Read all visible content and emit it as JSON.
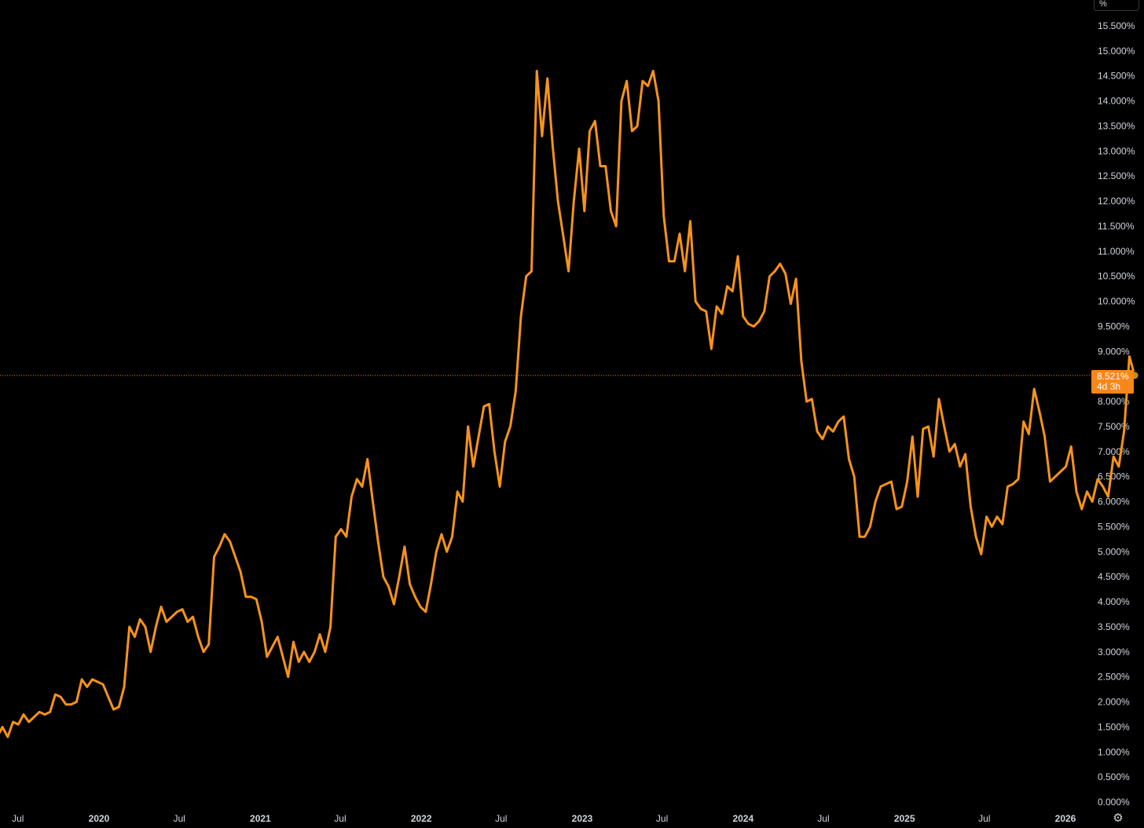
{
  "chart_data": {
    "type": "line",
    "unit": "%",
    "y_range": [
      0,
      15.5
    ],
    "y_tick_values": [
      0,
      0.5,
      1,
      1.5,
      2,
      2.5,
      3,
      3.5,
      4,
      4.5,
      5,
      5.5,
      6,
      6.5,
      7,
      7.5,
      8,
      8.5,
      9,
      9.5,
      10,
      10.5,
      11,
      11.5,
      12,
      12.5,
      13,
      13.5,
      14,
      14.5,
      15,
      15.5
    ],
    "y_tick_labels": [
      "0.000%",
      "0.500%",
      "1.000%",
      "1.500%",
      "2.000%",
      "2.500%",
      "3.000%",
      "3.500%",
      "4.000%",
      "4.500%",
      "5.000%",
      "5.500%",
      "6.000%",
      "6.500%",
      "7.000%",
      "7.500%",
      "8.000%",
      "8.500%",
      "9.000%",
      "9.500%",
      "10.000%",
      "10.500%",
      "11.000%",
      "11.500%",
      "12.000%",
      "12.500%",
      "13.000%",
      "13.500%",
      "14.000%",
      "14.500%",
      "15.000%",
      "15.500%"
    ],
    "x_ticks": [
      {
        "label": "Jul",
        "date": "2019-07-01",
        "major": false
      },
      {
        "label": "2020",
        "date": "2020-01-01",
        "major": true
      },
      {
        "label": "Jul",
        "date": "2020-07-01",
        "major": false
      },
      {
        "label": "2021",
        "date": "2021-01-01",
        "major": true
      },
      {
        "label": "Jul",
        "date": "2021-07-01",
        "major": false
      },
      {
        "label": "2022",
        "date": "2022-01-01",
        "major": true
      },
      {
        "label": "Jul",
        "date": "2022-07-01",
        "major": false
      },
      {
        "label": "2023",
        "date": "2023-01-01",
        "major": true
      },
      {
        "label": "Jul",
        "date": "2023-07-01",
        "major": false
      },
      {
        "label": "2024",
        "date": "2024-01-01",
        "major": true
      },
      {
        "label": "Jul",
        "date": "2024-07-01",
        "major": false
      },
      {
        "label": "2025",
        "date": "2025-01-01",
        "major": true
      },
      {
        "label": "Jul",
        "date": "2025-07-01",
        "major": false
      },
      {
        "label": "2026",
        "date": "2026-01-01",
        "major": true
      }
    ],
    "series": [
      {
        "color": "#f7931a",
        "points": [
          [
            "2019-05-15",
            1.3
          ],
          [
            "2019-05-27",
            1.5
          ],
          [
            "2019-06-08",
            1.3
          ],
          [
            "2019-06-20",
            1.6
          ],
          [
            "2019-07-02",
            1.55
          ],
          [
            "2019-07-14",
            1.75
          ],
          [
            "2019-07-26",
            1.6
          ],
          [
            "2019-08-07",
            1.7
          ],
          [
            "2019-08-19",
            1.8
          ],
          [
            "2019-08-31",
            1.75
          ],
          [
            "2019-09-12",
            1.8
          ],
          [
            "2019-09-24",
            2.15
          ],
          [
            "2019-10-06",
            2.1
          ],
          [
            "2019-10-18",
            1.95
          ],
          [
            "2019-10-30",
            1.95
          ],
          [
            "2019-11-11",
            2.0
          ],
          [
            "2019-11-23",
            2.45
          ],
          [
            "2019-12-05",
            2.3
          ],
          [
            "2019-12-17",
            2.45
          ],
          [
            "2019-12-29",
            2.4
          ],
          [
            "2020-01-10",
            2.35
          ],
          [
            "2020-01-22",
            2.1
          ],
          [
            "2020-02-03",
            1.85
          ],
          [
            "2020-02-15",
            1.9
          ],
          [
            "2020-02-27",
            2.3
          ],
          [
            "2020-03-10",
            3.5
          ],
          [
            "2020-03-22",
            3.3
          ],
          [
            "2020-04-03",
            3.65
          ],
          [
            "2020-04-15",
            3.5
          ],
          [
            "2020-04-27",
            3.0
          ],
          [
            "2020-05-09",
            3.5
          ],
          [
            "2020-05-21",
            3.9
          ],
          [
            "2020-06-02",
            3.6
          ],
          [
            "2020-06-14",
            3.7
          ],
          [
            "2020-06-26",
            3.8
          ],
          [
            "2020-07-08",
            3.85
          ],
          [
            "2020-07-20",
            3.6
          ],
          [
            "2020-08-01",
            3.7
          ],
          [
            "2020-08-13",
            3.3
          ],
          [
            "2020-08-25",
            3.0
          ],
          [
            "2020-09-06",
            3.15
          ],
          [
            "2020-09-18",
            4.9
          ],
          [
            "2020-09-30",
            5.1
          ],
          [
            "2020-10-12",
            5.35
          ],
          [
            "2020-10-24",
            5.2
          ],
          [
            "2020-11-05",
            4.9
          ],
          [
            "2020-11-17",
            4.6
          ],
          [
            "2020-11-29",
            4.1
          ],
          [
            "2020-12-11",
            4.1
          ],
          [
            "2020-12-23",
            4.05
          ],
          [
            "2021-01-04",
            3.6
          ],
          [
            "2021-01-16",
            2.9
          ],
          [
            "2021-01-28",
            3.1
          ],
          [
            "2021-02-09",
            3.3
          ],
          [
            "2021-02-21",
            2.9
          ],
          [
            "2021-03-05",
            2.5
          ],
          [
            "2021-03-17",
            3.2
          ],
          [
            "2021-03-29",
            2.8
          ],
          [
            "2021-04-10",
            3.0
          ],
          [
            "2021-04-22",
            2.8
          ],
          [
            "2021-05-04",
            3.0
          ],
          [
            "2021-05-16",
            3.35
          ],
          [
            "2021-05-28",
            3.0
          ],
          [
            "2021-06-09",
            3.5
          ],
          [
            "2021-06-21",
            5.3
          ],
          [
            "2021-07-03",
            5.45
          ],
          [
            "2021-07-15",
            5.3
          ],
          [
            "2021-07-27",
            6.1
          ],
          [
            "2021-08-08",
            6.45
          ],
          [
            "2021-08-20",
            6.3
          ],
          [
            "2021-09-01",
            6.85
          ],
          [
            "2021-09-13",
            6.0
          ],
          [
            "2021-09-25",
            5.2
          ],
          [
            "2021-10-07",
            4.5
          ],
          [
            "2021-10-19",
            4.3
          ],
          [
            "2021-10-31",
            3.95
          ],
          [
            "2021-11-12",
            4.5
          ],
          [
            "2021-11-24",
            5.1
          ],
          [
            "2021-12-06",
            4.35
          ],
          [
            "2021-12-18",
            4.1
          ],
          [
            "2021-12-30",
            3.9
          ],
          [
            "2022-01-11",
            3.8
          ],
          [
            "2022-01-23",
            4.35
          ],
          [
            "2022-02-04",
            5.0
          ],
          [
            "2022-02-16",
            5.35
          ],
          [
            "2022-02-28",
            5.0
          ],
          [
            "2022-03-12",
            5.3
          ],
          [
            "2022-03-24",
            6.2
          ],
          [
            "2022-04-05",
            6.0
          ],
          [
            "2022-04-17",
            7.5
          ],
          [
            "2022-04-29",
            6.7
          ],
          [
            "2022-05-11",
            7.3
          ],
          [
            "2022-05-23",
            7.9
          ],
          [
            "2022-06-04",
            7.95
          ],
          [
            "2022-06-16",
            7.0
          ],
          [
            "2022-06-28",
            6.3
          ],
          [
            "2022-07-10",
            7.2
          ],
          [
            "2022-07-22",
            7.5
          ],
          [
            "2022-08-03",
            8.2
          ],
          [
            "2022-08-15",
            9.7
          ],
          [
            "2022-08-27",
            10.5
          ],
          [
            "2022-09-08",
            10.6
          ],
          [
            "2022-09-20",
            14.6
          ],
          [
            "2022-10-02",
            13.3
          ],
          [
            "2022-10-14",
            14.45
          ],
          [
            "2022-10-26",
            13.1
          ],
          [
            "2022-11-07",
            12.0
          ],
          [
            "2022-11-19",
            11.3
          ],
          [
            "2022-12-01",
            10.6
          ],
          [
            "2022-12-13",
            12.0
          ],
          [
            "2022-12-25",
            13.05
          ],
          [
            "2023-01-06",
            11.8
          ],
          [
            "2023-01-18",
            13.4
          ],
          [
            "2023-01-30",
            13.6
          ],
          [
            "2023-02-11",
            12.7
          ],
          [
            "2023-02-23",
            12.7
          ],
          [
            "2023-03-07",
            11.8
          ],
          [
            "2023-03-19",
            11.5
          ],
          [
            "2023-03-31",
            14.0
          ],
          [
            "2023-04-12",
            14.4
          ],
          [
            "2023-04-24",
            13.4
          ],
          [
            "2023-05-06",
            13.5
          ],
          [
            "2023-05-18",
            14.4
          ],
          [
            "2023-05-30",
            14.3
          ],
          [
            "2023-06-11",
            14.6
          ],
          [
            "2023-06-23",
            14.0
          ],
          [
            "2023-07-05",
            11.7
          ],
          [
            "2023-07-17",
            10.8
          ],
          [
            "2023-07-29",
            10.8
          ],
          [
            "2023-08-10",
            11.35
          ],
          [
            "2023-08-22",
            10.6
          ],
          [
            "2023-09-03",
            11.6
          ],
          [
            "2023-09-15",
            10.0
          ],
          [
            "2023-09-27",
            9.85
          ],
          [
            "2023-10-09",
            9.8
          ],
          [
            "2023-10-21",
            9.05
          ],
          [
            "2023-11-02",
            9.9
          ],
          [
            "2023-11-14",
            9.75
          ],
          [
            "2023-11-26",
            10.3
          ],
          [
            "2023-12-08",
            10.2
          ],
          [
            "2023-12-20",
            10.9
          ],
          [
            "2024-01-01",
            9.7
          ],
          [
            "2024-01-13",
            9.55
          ],
          [
            "2024-01-25",
            9.5
          ],
          [
            "2024-02-06",
            9.6
          ],
          [
            "2024-02-18",
            9.8
          ],
          [
            "2024-03-01",
            10.5
          ],
          [
            "2024-03-13",
            10.6
          ],
          [
            "2024-03-25",
            10.75
          ],
          [
            "2024-04-06",
            10.55
          ],
          [
            "2024-04-18",
            9.95
          ],
          [
            "2024-04-30",
            10.45
          ],
          [
            "2024-05-12",
            8.8
          ],
          [
            "2024-05-24",
            8.0
          ],
          [
            "2024-06-05",
            8.05
          ],
          [
            "2024-06-17",
            7.4
          ],
          [
            "2024-06-29",
            7.25
          ],
          [
            "2024-07-11",
            7.5
          ],
          [
            "2024-07-23",
            7.4
          ],
          [
            "2024-08-04",
            7.6
          ],
          [
            "2024-08-16",
            7.7
          ],
          [
            "2024-08-28",
            6.85
          ],
          [
            "2024-09-09",
            6.5
          ],
          [
            "2024-09-21",
            5.3
          ],
          [
            "2024-10-03",
            5.3
          ],
          [
            "2024-10-15",
            5.5
          ],
          [
            "2024-10-27",
            6.0
          ],
          [
            "2024-11-08",
            6.3
          ],
          [
            "2024-11-20",
            6.35
          ],
          [
            "2024-12-02",
            6.4
          ],
          [
            "2024-12-14",
            5.85
          ],
          [
            "2024-12-26",
            5.9
          ],
          [
            "2025-01-07",
            6.4
          ],
          [
            "2025-01-19",
            7.3
          ],
          [
            "2025-01-31",
            6.1
          ],
          [
            "2025-02-12",
            7.45
          ],
          [
            "2025-02-24",
            7.5
          ],
          [
            "2025-03-08",
            6.9
          ],
          [
            "2025-03-20",
            8.05
          ],
          [
            "2025-04-01",
            7.5
          ],
          [
            "2025-04-13",
            7.0
          ],
          [
            "2025-04-25",
            7.15
          ],
          [
            "2025-05-07",
            6.7
          ],
          [
            "2025-05-19",
            6.95
          ],
          [
            "2025-05-31",
            5.9
          ],
          [
            "2025-06-12",
            5.3
          ],
          [
            "2025-06-24",
            4.95
          ],
          [
            "2025-07-06",
            5.7
          ],
          [
            "2025-07-18",
            5.5
          ],
          [
            "2025-07-30",
            5.7
          ],
          [
            "2025-08-11",
            5.55
          ],
          [
            "2025-08-23",
            6.3
          ],
          [
            "2025-09-04",
            6.35
          ],
          [
            "2025-09-16",
            6.45
          ],
          [
            "2025-09-28",
            7.6
          ],
          [
            "2025-10-10",
            7.35
          ],
          [
            "2025-10-22",
            8.25
          ],
          [
            "2025-11-03",
            7.8
          ],
          [
            "2025-11-15",
            7.3
          ],
          [
            "2025-11-27",
            6.4
          ],
          [
            "2025-12-09",
            6.5
          ],
          [
            "2025-12-21",
            6.6
          ],
          [
            "2026-01-02",
            6.7
          ],
          [
            "2026-01-14",
            7.1
          ],
          [
            "2026-01-26",
            6.2
          ],
          [
            "2026-02-07",
            5.85
          ],
          [
            "2026-02-19",
            6.2
          ],
          [
            "2026-03-03",
            6.0
          ],
          [
            "2026-03-15",
            6.45
          ],
          [
            "2026-03-27",
            6.3
          ],
          [
            "2026-04-08",
            6.1
          ],
          [
            "2026-04-20",
            6.9
          ],
          [
            "2026-05-02",
            6.7
          ],
          [
            "2026-05-14",
            7.4
          ],
          [
            "2026-05-26",
            8.9
          ],
          [
            "2026-06-07",
            8.521
          ]
        ]
      }
    ],
    "last_value": 8.521,
    "last_value_label": "8.521%",
    "countdown_label": "4d 3h",
    "unit_label": "%",
    "reference_line_color": "#f7861b",
    "grid": false,
    "legend": "none"
  },
  "ui": {
    "settings_icon": "gear-icon"
  }
}
